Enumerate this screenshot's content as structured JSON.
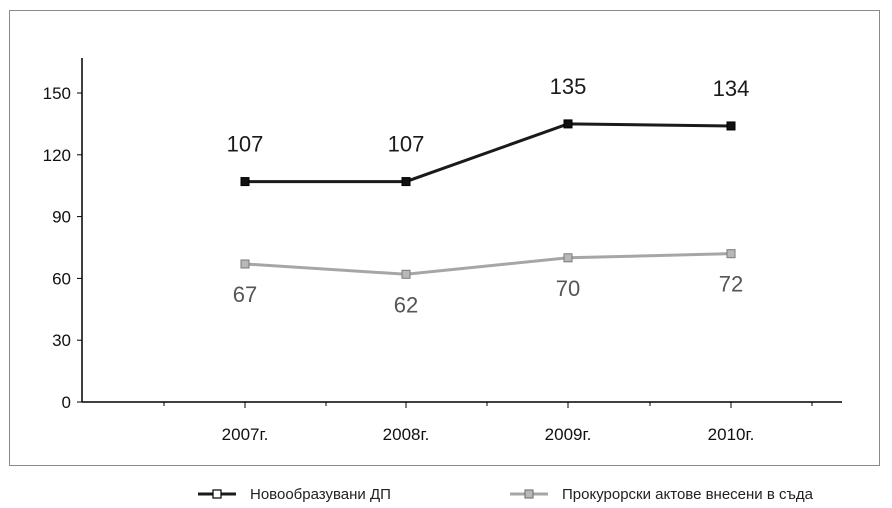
{
  "chart_data": {
    "type": "line",
    "categories": [
      "2007г.",
      "2008г.",
      "2009г.",
      "2010г."
    ],
    "ylim": [
      0,
      150
    ],
    "yticks": [
      0,
      30,
      60,
      90,
      120,
      150
    ],
    "grid": false,
    "legend_position": "bottom",
    "series": [
      {
        "name": "Новообразувани ДП",
        "values": [
          107,
          107,
          135,
          134
        ],
        "color": "#1a1a1a",
        "label_position": "above"
      },
      {
        "name": "Прокурорски актове внесени в съда",
        "values": [
          67,
          62,
          70,
          72
        ],
        "color": "#a6a6a6",
        "label_position": "below"
      }
    ],
    "title": "",
    "xlabel": "",
    "ylabel": ""
  }
}
